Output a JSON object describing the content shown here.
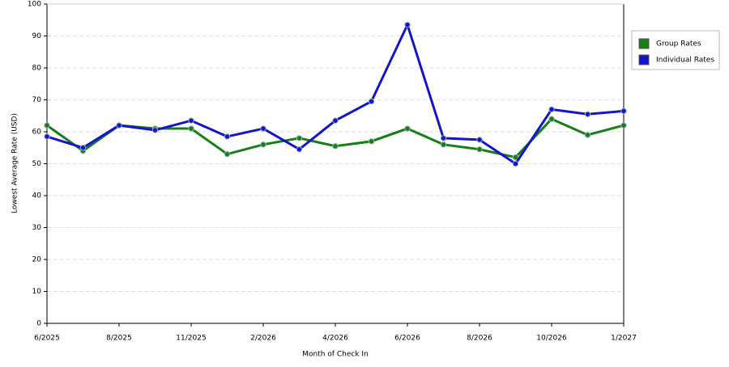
{
  "chart_data": {
    "type": "line",
    "x_label": "Month of Check In",
    "y_label": "Lowest Average Rate (USD)",
    "categories": [
      "6/2025",
      null,
      "8/2025",
      null,
      "11/2025",
      null,
      "2/2026",
      null,
      "4/2026",
      null,
      "6/2026",
      null,
      "8/2026",
      null,
      "10/2026",
      null,
      "1/2027"
    ],
    "series": [
      {
        "name": "Group Rates",
        "color": "#168016",
        "values": [
          62,
          54,
          62,
          61,
          61,
          53,
          56,
          58,
          55.5,
          57,
          61,
          56,
          54.5,
          52,
          64,
          59,
          62
        ]
      },
      {
        "name": "Individual Rates",
        "color": "#1515c8",
        "values": [
          58.5,
          55,
          62,
          60.5,
          63.5,
          58.5,
          61,
          54.5,
          63.5,
          69.5,
          93.5,
          58,
          57.5,
          50,
          67,
          65.5,
          66.5
        ]
      }
    ],
    "ylim": [
      0,
      100
    ],
    "yticks": [
      0,
      10,
      20,
      30,
      40,
      50,
      60,
      70,
      80,
      90,
      100
    ],
    "grid": true,
    "legend": "right"
  }
}
